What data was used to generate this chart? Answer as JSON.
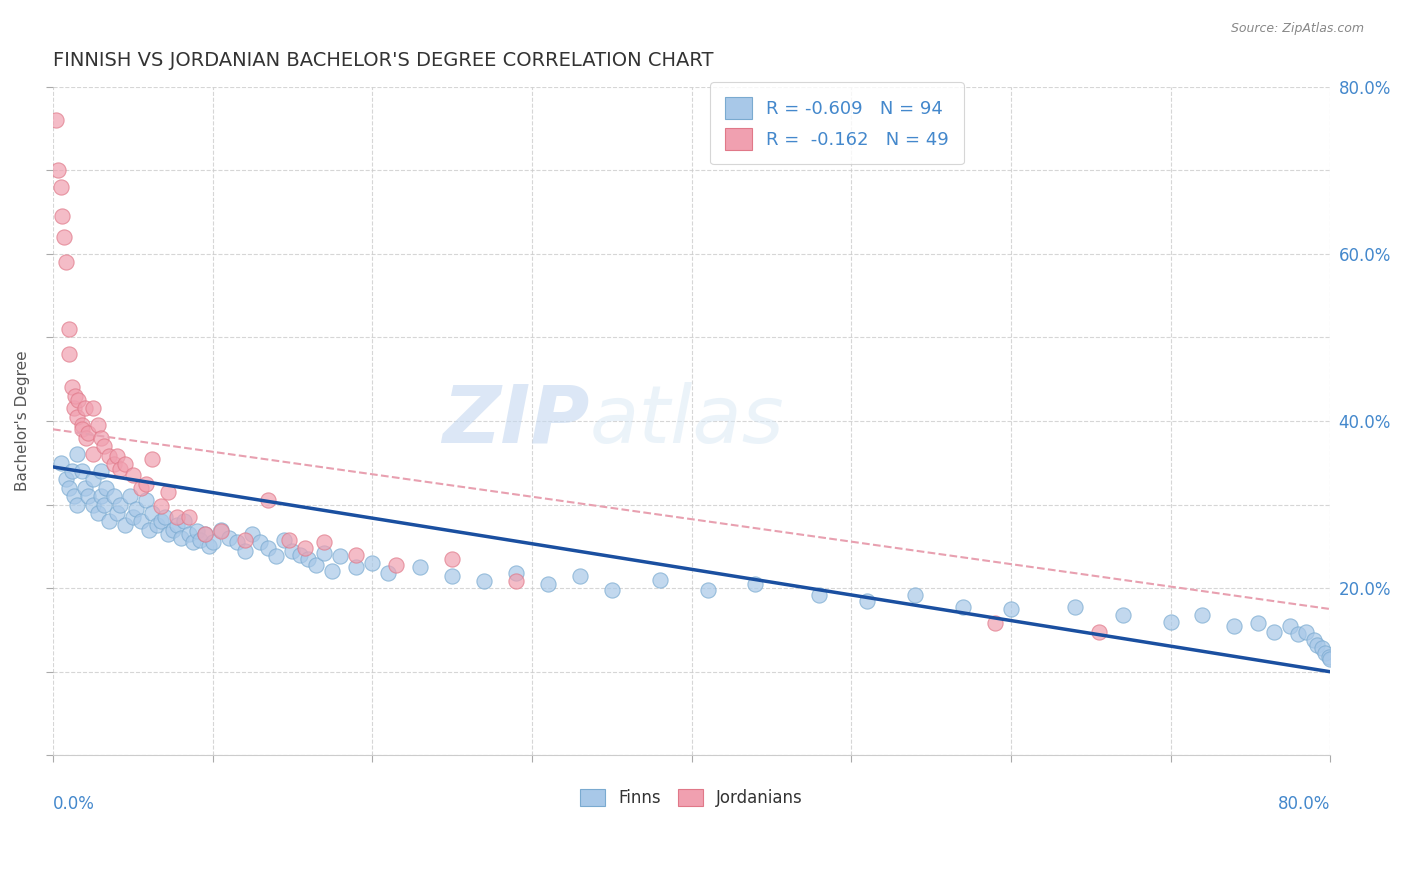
{
  "title": "FINNISH VS JORDANIAN BACHELOR'S DEGREE CORRELATION CHART",
  "source": "Source: ZipAtlas.com",
  "ylabel": "Bachelor's Degree",
  "watermark": "ZIPatlas",
  "legend_r1": "R = -0.609   N = 94",
  "legend_r2": "R =  -0.162   N = 49",
  "finn_color": "#a8c8e8",
  "finn_edge_color": "#7aaad0",
  "jordan_color": "#f0a0b0",
  "jordan_edge_color": "#e07888",
  "finn_line_color": "#1a4fa0",
  "jordan_line_color": "#e06878",
  "jordan_dash_color": "#e8a0b0",
  "background_color": "#ffffff",
  "grid_color": "#cccccc",
  "title_color": "#333333",
  "axis_label_color": "#4488cc",
  "source_color": "#888888",
  "ylabel_color": "#555555",
  "legend_text_color": "#4488cc",
  "xlim": [
    0.0,
    0.8
  ],
  "ylim": [
    0.0,
    0.8
  ],
  "finn_scatter_x": [
    0.005,
    0.008,
    0.01,
    0.012,
    0.013,
    0.015,
    0.015,
    0.018,
    0.02,
    0.022,
    0.025,
    0.025,
    0.028,
    0.03,
    0.03,
    0.032,
    0.033,
    0.035,
    0.038,
    0.04,
    0.042,
    0.045,
    0.048,
    0.05,
    0.052,
    0.055,
    0.058,
    0.06,
    0.062,
    0.065,
    0.068,
    0.07,
    0.072,
    0.075,
    0.078,
    0.08,
    0.082,
    0.085,
    0.088,
    0.09,
    0.092,
    0.095,
    0.098,
    0.1,
    0.105,
    0.11,
    0.115,
    0.12,
    0.125,
    0.13,
    0.135,
    0.14,
    0.145,
    0.15,
    0.155,
    0.16,
    0.165,
    0.17,
    0.175,
    0.18,
    0.19,
    0.2,
    0.21,
    0.23,
    0.25,
    0.27,
    0.29,
    0.31,
    0.33,
    0.35,
    0.38,
    0.41,
    0.44,
    0.48,
    0.51,
    0.54,
    0.57,
    0.6,
    0.64,
    0.67,
    0.7,
    0.72,
    0.74,
    0.755,
    0.765,
    0.775,
    0.78,
    0.785,
    0.79,
    0.792,
    0.795,
    0.797,
    0.799,
    0.8
  ],
  "finn_scatter_y": [
    0.35,
    0.33,
    0.32,
    0.34,
    0.31,
    0.36,
    0.3,
    0.34,
    0.32,
    0.31,
    0.33,
    0.3,
    0.29,
    0.31,
    0.34,
    0.3,
    0.32,
    0.28,
    0.31,
    0.29,
    0.3,
    0.275,
    0.31,
    0.285,
    0.295,
    0.28,
    0.305,
    0.27,
    0.29,
    0.275,
    0.28,
    0.285,
    0.265,
    0.27,
    0.275,
    0.26,
    0.28,
    0.265,
    0.255,
    0.268,
    0.258,
    0.265,
    0.25,
    0.255,
    0.27,
    0.26,
    0.255,
    0.245,
    0.265,
    0.255,
    0.248,
    0.238,
    0.258,
    0.245,
    0.24,
    0.235,
    0.228,
    0.242,
    0.22,
    0.238,
    0.225,
    0.23,
    0.218,
    0.225,
    0.215,
    0.208,
    0.218,
    0.205,
    0.215,
    0.198,
    0.21,
    0.198,
    0.205,
    0.192,
    0.185,
    0.192,
    0.178,
    0.175,
    0.178,
    0.168,
    0.16,
    0.168,
    0.155,
    0.158,
    0.148,
    0.155,
    0.145,
    0.148,
    0.138,
    0.132,
    0.128,
    0.122,
    0.118,
    0.115
  ],
  "jordan_scatter_x": [
    0.002,
    0.003,
    0.005,
    0.006,
    0.007,
    0.008,
    0.01,
    0.01,
    0.012,
    0.013,
    0.014,
    0.015,
    0.016,
    0.018,
    0.018,
    0.02,
    0.021,
    0.022,
    0.025,
    0.025,
    0.028,
    0.03,
    0.032,
    0.035,
    0.038,
    0.04,
    0.042,
    0.045,
    0.05,
    0.055,
    0.058,
    0.062,
    0.068,
    0.072,
    0.078,
    0.085,
    0.095,
    0.105,
    0.12,
    0.135,
    0.148,
    0.158,
    0.17,
    0.19,
    0.215,
    0.25,
    0.29,
    0.59,
    0.655
  ],
  "jordan_scatter_y": [
    0.76,
    0.7,
    0.68,
    0.645,
    0.62,
    0.59,
    0.48,
    0.51,
    0.44,
    0.415,
    0.43,
    0.405,
    0.425,
    0.395,
    0.39,
    0.415,
    0.38,
    0.385,
    0.415,
    0.36,
    0.395,
    0.38,
    0.37,
    0.358,
    0.348,
    0.358,
    0.342,
    0.348,
    0.335,
    0.32,
    0.325,
    0.355,
    0.298,
    0.315,
    0.285,
    0.285,
    0.265,
    0.268,
    0.258,
    0.305,
    0.258,
    0.248,
    0.255,
    0.24,
    0.228,
    0.235,
    0.208,
    0.158,
    0.148
  ],
  "finn_trendline_x0": 0.0,
  "finn_trendline_x1": 0.8,
  "finn_trendline_y0": 0.345,
  "finn_trendline_y1": 0.1,
  "jordan_trendline_x0": 0.0,
  "jordan_trendline_x1": 0.8,
  "jordan_trendline_y0": 0.39,
  "jordan_trendline_y1": 0.175
}
